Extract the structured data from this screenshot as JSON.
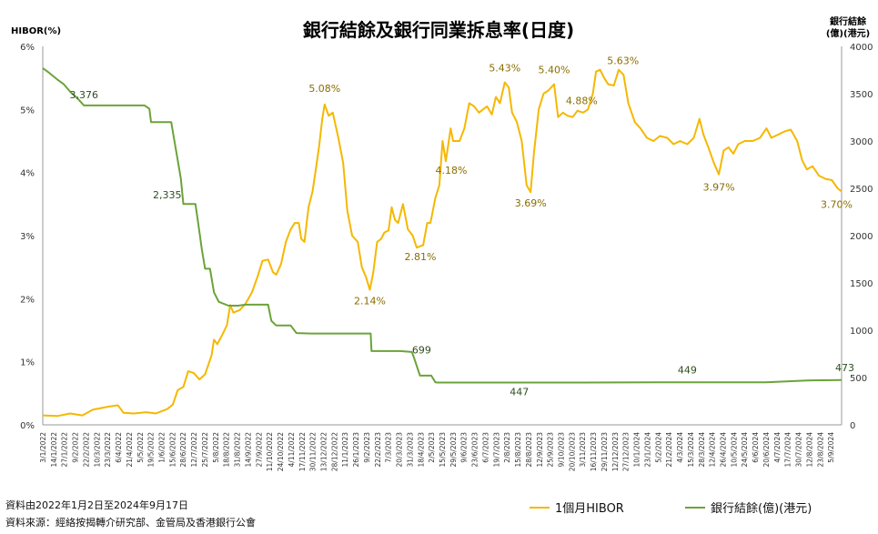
{
  "chart_data": {
    "type": "line",
    "title": "銀行結餘及銀行同業拆息率(日度)",
    "left_axis_label": "HIBOR(%)",
    "right_axis_label_line1": "銀行結餘",
    "right_axis_label_line2": "(億)(港元)",
    "left_axis": {
      "min": 0,
      "max": 6,
      "step": 1,
      "suffix": "%"
    },
    "right_axis": {
      "min": 0,
      "max": 4000,
      "step": 500
    },
    "left_ticks": [
      "0%",
      "1%",
      "2%",
      "3%",
      "4%",
      "5%",
      "6%"
    ],
    "right_ticks": [
      "0",
      "500",
      "1000",
      "1500",
      "2000",
      "2500",
      "3000",
      "3500",
      "4000"
    ],
    "x_range": [
      "2022-01-02",
      "2024-09-17"
    ],
    "x_tick_labels": [
      "3/1/2022",
      "14/1/2022",
      "27/1/2022",
      "9/2/2022",
      "22/2/2022",
      "10/3/2022",
      "23/3/2022",
      "6/4/2022",
      "21/4/2022",
      "5/5/2022",
      "19/5/2022",
      "1/6/2022",
      "15/6/2022",
      "28/6/2022",
      "12/7/2022",
      "25/7/2022",
      "5/8/2022",
      "18/8/2022",
      "31/8/2022",
      "14/9/2022",
      "27/9/2022",
      "11/10/2022",
      "24/10/2022",
      "4/11/2022",
      "17/11/2022",
      "30/11/2022",
      "13/12/2022",
      "28/12/2022",
      "11/1/2023",
      "26/1/2023",
      "9/2/2023",
      "22/2/2023",
      "7/3/2023",
      "20/3/2023",
      "31/3/2023",
      "18/4/2023",
      "2/5/2023",
      "15/5/2023",
      "29/5/2023",
      "9/6/2023",
      "23/6/2023",
      "6/7/2023",
      "19/7/2023",
      "2/8/2023",
      "15/8/2023",
      "28/8/2023",
      "12/9/2023",
      "25/9/2023",
      "9/10/2023",
      "20/10/2023",
      "3/11/2023",
      "16/11/2023",
      "29/11/2023",
      "12/12/2023",
      "27/12/2023",
      "10/1/2024",
      "23/1/2024",
      "5/2/2024",
      "21/2/2024",
      "4/3/2024",
      "15/3/2024",
      "28/3/2024",
      "12/4/2024",
      "26/4/2024",
      "10/5/2024",
      "24/5/2024",
      "6/6/2024",
      "20/6/2024",
      "4/7/2024",
      "17/7/2024",
      "30/7/2024",
      "12/8/2024",
      "23/8/2024",
      "5/9/2024"
    ],
    "series": [
      {
        "name": "1個月HIBOR",
        "axis": "left",
        "color": "#F5B800",
        "points": [
          [
            "2022-01-02",
            0.15
          ],
          [
            "2022-01-20",
            0.14
          ],
          [
            "2022-02-05",
            0.18
          ],
          [
            "2022-02-20",
            0.15
          ],
          [
            "2022-03-05",
            0.24
          ],
          [
            "2022-03-25",
            0.29
          ],
          [
            "2022-04-05",
            0.31
          ],
          [
            "2022-04-12",
            0.19
          ],
          [
            "2022-04-25",
            0.18
          ],
          [
            "2022-05-10",
            0.2
          ],
          [
            "2022-05-22",
            0.18
          ],
          [
            "2022-06-05",
            0.25
          ],
          [
            "2022-06-12",
            0.32
          ],
          [
            "2022-06-18",
            0.55
          ],
          [
            "2022-06-25",
            0.6
          ],
          [
            "2022-07-01",
            0.85
          ],
          [
            "2022-07-08",
            0.82
          ],
          [
            "2022-07-15",
            0.72
          ],
          [
            "2022-07-22",
            0.8
          ],
          [
            "2022-07-30",
            1.1
          ],
          [
            "2022-08-02",
            1.35
          ],
          [
            "2022-08-06",
            1.28
          ],
          [
            "2022-08-12",
            1.42
          ],
          [
            "2022-08-18",
            1.58
          ],
          [
            "2022-08-22",
            1.9
          ],
          [
            "2022-08-26",
            1.78
          ],
          [
            "2022-09-03",
            1.82
          ],
          [
            "2022-09-10",
            1.92
          ],
          [
            "2022-09-18",
            2.1
          ],
          [
            "2022-09-25",
            2.35
          ],
          [
            "2022-10-01",
            2.6
          ],
          [
            "2022-10-08",
            2.62
          ],
          [
            "2022-10-14",
            2.42
          ],
          [
            "2022-10-18",
            2.38
          ],
          [
            "2022-10-24",
            2.55
          ],
          [
            "2022-10-30",
            2.9
          ],
          [
            "2022-11-05",
            3.1
          ],
          [
            "2022-11-10",
            3.2
          ],
          [
            "2022-11-15",
            3.2
          ],
          [
            "2022-11-18",
            2.95
          ],
          [
            "2022-11-22",
            2.9
          ],
          [
            "2022-11-27",
            3.45
          ],
          [
            "2022-12-02",
            3.7
          ],
          [
            "2022-12-06",
            4.05
          ],
          [
            "2022-12-10",
            4.4
          ],
          [
            "2022-12-14",
            4.85
          ],
          [
            "2022-12-17",
            5.08
          ],
          [
            "2022-12-22",
            4.9
          ],
          [
            "2022-12-27",
            4.95
          ],
          [
            "2023-01-03",
            4.55
          ],
          [
            "2023-01-09",
            4.15
          ],
          [
            "2023-01-14",
            3.4
          ],
          [
            "2023-01-20",
            3.0
          ],
          [
            "2023-01-27",
            2.9
          ],
          [
            "2023-02-01",
            2.5
          ],
          [
            "2023-02-06",
            2.35
          ],
          [
            "2023-02-11",
            2.14
          ],
          [
            "2023-02-15",
            2.4
          ],
          [
            "2023-02-20",
            2.9
          ],
          [
            "2023-02-25",
            2.95
          ],
          [
            "2023-03-01",
            3.05
          ],
          [
            "2023-03-06",
            3.08
          ],
          [
            "2023-03-10",
            3.45
          ],
          [
            "2023-03-14",
            3.25
          ],
          [
            "2023-03-18",
            3.2
          ],
          [
            "2023-03-24",
            3.5
          ],
          [
            "2023-03-30",
            3.1
          ],
          [
            "2023-04-05",
            3.0
          ],
          [
            "2023-04-10",
            2.81
          ],
          [
            "2023-04-18",
            2.85
          ],
          [
            "2023-04-23",
            3.2
          ],
          [
            "2023-04-27",
            3.2
          ],
          [
            "2023-05-03",
            3.6
          ],
          [
            "2023-05-08",
            3.8
          ],
          [
            "2023-05-12",
            4.5
          ],
          [
            "2023-05-16",
            4.18
          ],
          [
            "2023-05-22",
            4.7
          ],
          [
            "2023-05-25",
            4.5
          ],
          [
            "2023-06-02",
            4.5
          ],
          [
            "2023-06-08",
            4.7
          ],
          [
            "2023-06-14",
            5.1
          ],
          [
            "2023-06-20",
            5.05
          ],
          [
            "2023-06-26",
            4.95
          ],
          [
            "2023-07-01",
            5.0
          ],
          [
            "2023-07-06",
            5.05
          ],
          [
            "2023-07-12",
            4.92
          ],
          [
            "2023-07-17",
            5.2
          ],
          [
            "2023-07-22",
            5.1
          ],
          [
            "2023-07-28",
            5.43
          ],
          [
            "2023-08-02",
            5.35
          ],
          [
            "2023-08-06",
            4.95
          ],
          [
            "2023-08-12",
            4.8
          ],
          [
            "2023-08-18",
            4.5
          ],
          [
            "2023-08-24",
            3.8
          ],
          [
            "2023-08-29",
            3.69
          ],
          [
            "2023-09-02",
            4.3
          ],
          [
            "2023-09-08",
            5.0
          ],
          [
            "2023-09-14",
            5.25
          ],
          [
            "2023-09-20",
            5.3
          ],
          [
            "2023-09-27",
            5.4
          ],
          [
            "2023-10-02",
            4.88
          ],
          [
            "2023-10-08",
            4.95
          ],
          [
            "2023-10-14",
            4.9
          ],
          [
            "2023-10-20",
            4.88
          ],
          [
            "2023-10-26",
            4.98
          ],
          [
            "2023-11-02",
            4.95
          ],
          [
            "2023-11-08",
            5.0
          ],
          [
            "2023-11-14",
            5.25
          ],
          [
            "2023-11-18",
            5.6
          ],
          [
            "2023-11-23",
            5.63
          ],
          [
            "2023-11-28",
            5.5
          ],
          [
            "2023-12-03",
            5.4
          ],
          [
            "2023-12-10",
            5.38
          ],
          [
            "2023-12-16",
            5.63
          ],
          [
            "2023-12-22",
            5.55
          ],
          [
            "2023-12-28",
            5.1
          ],
          [
            "2024-01-05",
            4.8
          ],
          [
            "2024-01-12",
            4.7
          ],
          [
            "2024-01-20",
            4.55
          ],
          [
            "2024-01-28",
            4.5
          ],
          [
            "2024-02-05",
            4.58
          ],
          [
            "2024-02-14",
            4.55
          ],
          [
            "2024-02-22",
            4.45
          ],
          [
            "2024-03-01",
            4.5
          ],
          [
            "2024-03-10",
            4.45
          ],
          [
            "2024-03-18",
            4.55
          ],
          [
            "2024-03-25",
            4.85
          ],
          [
            "2024-03-30",
            4.6
          ],
          [
            "2024-04-05",
            4.4
          ],
          [
            "2024-04-12",
            4.15
          ],
          [
            "2024-04-18",
            3.97
          ],
          [
            "2024-04-24",
            4.35
          ],
          [
            "2024-04-30",
            4.4
          ],
          [
            "2024-05-06",
            4.3
          ],
          [
            "2024-05-12",
            4.45
          ],
          [
            "2024-05-20",
            4.5
          ],
          [
            "2024-05-30",
            4.5
          ],
          [
            "2024-06-08",
            4.55
          ],
          [
            "2024-06-16",
            4.7
          ],
          [
            "2024-06-22",
            4.55
          ],
          [
            "2024-06-30",
            4.6
          ],
          [
            "2024-07-08",
            4.65
          ],
          [
            "2024-07-16",
            4.68
          ],
          [
            "2024-07-24",
            4.5
          ],
          [
            "2024-07-30",
            4.2
          ],
          [
            "2024-08-05",
            4.05
          ],
          [
            "2024-08-12",
            4.1
          ],
          [
            "2024-08-20",
            3.95
          ],
          [
            "2024-08-28",
            3.9
          ],
          [
            "2024-09-05",
            3.88
          ],
          [
            "2024-09-12",
            3.75
          ],
          [
            "2024-09-17",
            3.7
          ]
        ]
      },
      {
        "name": "銀行結餘(億)(港元)",
        "axis": "right",
        "color": "#6BA339",
        "points": [
          [
            "2022-01-02",
            3770
          ],
          [
            "2022-01-10",
            3720
          ],
          [
            "2022-01-20",
            3650
          ],
          [
            "2022-01-28",
            3600
          ],
          [
            "2022-02-05",
            3520
          ],
          [
            "2022-02-14",
            3450
          ],
          [
            "2022-02-22",
            3376
          ],
          [
            "2022-03-01",
            3376
          ],
          [
            "2022-04-20",
            3376
          ],
          [
            "2022-05-08",
            3376
          ],
          [
            "2022-05-14",
            3340
          ],
          [
            "2022-05-16",
            3200
          ],
          [
            "2022-06-10",
            3200
          ],
          [
            "2022-06-14",
            3000
          ],
          [
            "2022-06-18",
            2800
          ],
          [
            "2022-06-22",
            2600
          ],
          [
            "2022-06-25",
            2335
          ],
          [
            "2022-06-28",
            2335
          ],
          [
            "2022-07-10",
            2335
          ],
          [
            "2022-07-14",
            2100
          ],
          [
            "2022-07-18",
            1850
          ],
          [
            "2022-07-22",
            1650
          ],
          [
            "2022-07-28",
            1650
          ],
          [
            "2022-08-02",
            1400
          ],
          [
            "2022-08-08",
            1300
          ],
          [
            "2022-08-20",
            1260
          ],
          [
            "2022-09-01",
            1260
          ],
          [
            "2022-09-10",
            1270
          ],
          [
            "2022-10-01",
            1270
          ],
          [
            "2022-10-08",
            1270
          ],
          [
            "2022-10-12",
            1100
          ],
          [
            "2022-10-18",
            1050
          ],
          [
            "2022-11-05",
            1050
          ],
          [
            "2022-11-12",
            970
          ],
          [
            "2022-11-30",
            965
          ],
          [
            "2023-01-20",
            965
          ],
          [
            "2023-02-12",
            965
          ],
          [
            "2023-02-13",
            780
          ],
          [
            "2023-03-20",
            780
          ],
          [
            "2023-04-04",
            770
          ],
          [
            "2023-04-07",
            699
          ],
          [
            "2023-04-14",
            520
          ],
          [
            "2023-04-28",
            520
          ],
          [
            "2023-05-03",
            450
          ],
          [
            "2023-05-06",
            447
          ],
          [
            "2023-08-15",
            447
          ],
          [
            "2023-11-01",
            447
          ],
          [
            "2024-02-01",
            449
          ],
          [
            "2024-04-01",
            449
          ],
          [
            "2024-06-15",
            450
          ],
          [
            "2024-08-10",
            470
          ],
          [
            "2024-09-17",
            473
          ]
        ]
      }
    ],
    "annotations": [
      {
        "series": 1,
        "date": "2022-02-22",
        "value": 3376,
        "label": "3,376"
      },
      {
        "series": 1,
        "date": "2022-06-25",
        "value": 2335,
        "label": "2,335"
      },
      {
        "series": 1,
        "date": "2023-04-07",
        "value": 699,
        "label": "699"
      },
      {
        "series": 1,
        "date": "2023-08-15",
        "value": 447,
        "label": "447"
      },
      {
        "series": 1,
        "date": "2024-03-10",
        "value": 449,
        "label": "449"
      },
      {
        "series": 1,
        "date": "2024-09-17",
        "value": 473,
        "label": "473"
      },
      {
        "series": 0,
        "date": "2022-12-17",
        "value": 5.08,
        "label": "5.08%"
      },
      {
        "series": 0,
        "date": "2023-02-11",
        "value": 2.14,
        "label": "2.14%"
      },
      {
        "series": 0,
        "date": "2023-04-10",
        "value": 2.81,
        "label": "2.81%"
      },
      {
        "series": 0,
        "date": "2023-05-16",
        "value": 4.18,
        "label": "4.18%"
      },
      {
        "series": 0,
        "date": "2023-07-28",
        "value": 5.43,
        "label": "5.43%"
      },
      {
        "series": 0,
        "date": "2023-08-29",
        "value": 3.69,
        "label": "3.69%"
      },
      {
        "series": 0,
        "date": "2023-09-27",
        "value": 5.4,
        "label": "5.40%"
      },
      {
        "series": 0,
        "date": "2023-10-20",
        "value": 4.88,
        "label": "4.88%"
      },
      {
        "series": 0,
        "date": "2023-12-10",
        "value": 5.63,
        "label": "5.63%"
      },
      {
        "series": 0,
        "date": "2024-04-18",
        "value": 3.97,
        "label": "3.97%"
      },
      {
        "series": 0,
        "date": "2024-09-17",
        "value": 3.7,
        "label": "3.70%"
      }
    ],
    "legend_position": "bottom-right",
    "grid": false
  },
  "footer": {
    "line1": "資料由2022年1月2日至2024年9月17日",
    "line2": "資料來源：經絡按揭轉介研究部、金管局及香港銀行公會"
  }
}
